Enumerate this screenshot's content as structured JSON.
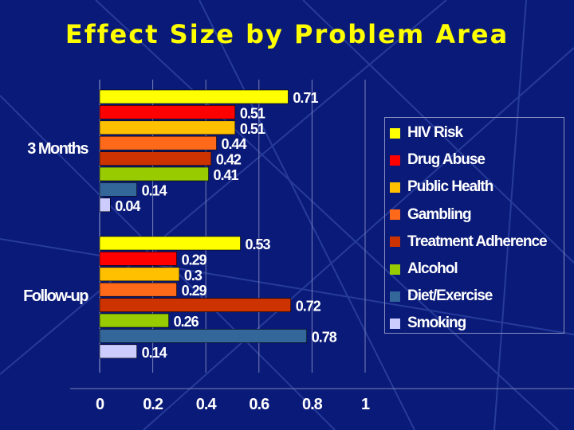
{
  "title": "Effect Size by Problem Area",
  "chart_data": {
    "type": "bar",
    "orientation": "horizontal",
    "title": "Effect Size by Problem Area",
    "categories": [
      "3 Months",
      "Follow-up"
    ],
    "series": [
      {
        "name": "HIV Risk",
        "color": "#ffff00",
        "values": [
          0.71,
          0.53
        ],
        "labels": [
          "0.71",
          "0.53"
        ]
      },
      {
        "name": "Drug Abuse",
        "color": "#ff0000",
        "values": [
          0.51,
          0.29
        ],
        "labels": [
          "0.51",
          "0.29"
        ]
      },
      {
        "name": "Public Health",
        "color": "#ffc000",
        "values": [
          0.51,
          0.3
        ],
        "labels": [
          "0.51",
          "0.3"
        ]
      },
      {
        "name": "Gambling",
        "color": "#ff6a1a",
        "values": [
          0.44,
          0.29
        ],
        "labels": [
          "0.44",
          "0.29"
        ]
      },
      {
        "name": "Treatment Adherence",
        "color": "#cc3300",
        "values": [
          0.42,
          0.72
        ],
        "labels": [
          "0.42",
          "0.72"
        ]
      },
      {
        "name": "Alcohol",
        "color": "#99cc00",
        "values": [
          0.41,
          0.26
        ],
        "labels": [
          "0.41",
          "0.26"
        ]
      },
      {
        "name": "Diet/Exercise",
        "color": "#336699",
        "values": [
          0.14,
          0.78
        ],
        "labels": [
          "0.14",
          "0.78"
        ]
      },
      {
        "name": "Smoking",
        "color": "#ccccff",
        "values": [
          0.04,
          0.14
        ],
        "labels": [
          "0.04",
          "0.14"
        ]
      }
    ],
    "xlim": [
      0,
      1
    ],
    "xticks": [
      "0",
      "0.2",
      "0.4",
      "0.6",
      "0.8",
      "1"
    ],
    "grid": true,
    "legend": "right"
  }
}
